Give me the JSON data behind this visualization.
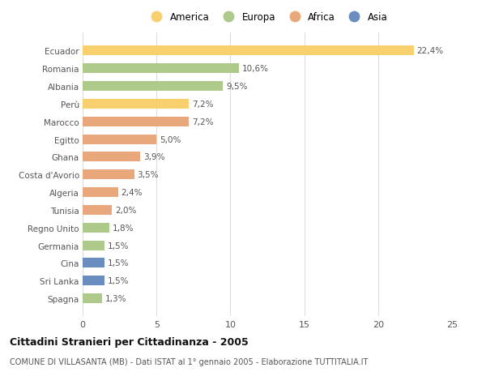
{
  "countries": [
    "Ecuador",
    "Romania",
    "Albania",
    "Perù",
    "Marocco",
    "Egitto",
    "Ghana",
    "Costa d'Avorio",
    "Algeria",
    "Tunisia",
    "Regno Unito",
    "Germania",
    "Cina",
    "Sri Lanka",
    "Spagna"
  ],
  "values": [
    22.4,
    10.6,
    9.5,
    7.2,
    7.2,
    5.0,
    3.9,
    3.5,
    2.4,
    2.0,
    1.8,
    1.5,
    1.5,
    1.5,
    1.3
  ],
  "labels": [
    "22,4%",
    "10,6%",
    "9,5%",
    "7,2%",
    "7,2%",
    "5,0%",
    "3,9%",
    "3,5%",
    "2,4%",
    "2,0%",
    "1,8%",
    "1,5%",
    "1,5%",
    "1,5%",
    "1,3%"
  ],
  "continents": [
    "America",
    "Europa",
    "Europa",
    "America",
    "Africa",
    "Africa",
    "Africa",
    "Africa",
    "Africa",
    "Africa",
    "Europa",
    "Europa",
    "Asia",
    "Asia",
    "Europa"
  ],
  "colors": {
    "America": "#F9D06E",
    "Europa": "#AECA8A",
    "Africa": "#E8A87C",
    "Asia": "#6A8DC0"
  },
  "legend_order": [
    "America",
    "Europa",
    "Africa",
    "Asia"
  ],
  "title": "Cittadini Stranieri per Cittadinanza - 2005",
  "subtitle": "COMUNE DI VILLASANTA (MB) - Dati ISTAT al 1° gennaio 2005 - Elaborazione TUTTITALIA.IT",
  "xlim": [
    0,
    25
  ],
  "xticks": [
    0,
    5,
    10,
    15,
    20,
    25
  ],
  "background_color": "#ffffff",
  "grid_color": "#dddddd"
}
